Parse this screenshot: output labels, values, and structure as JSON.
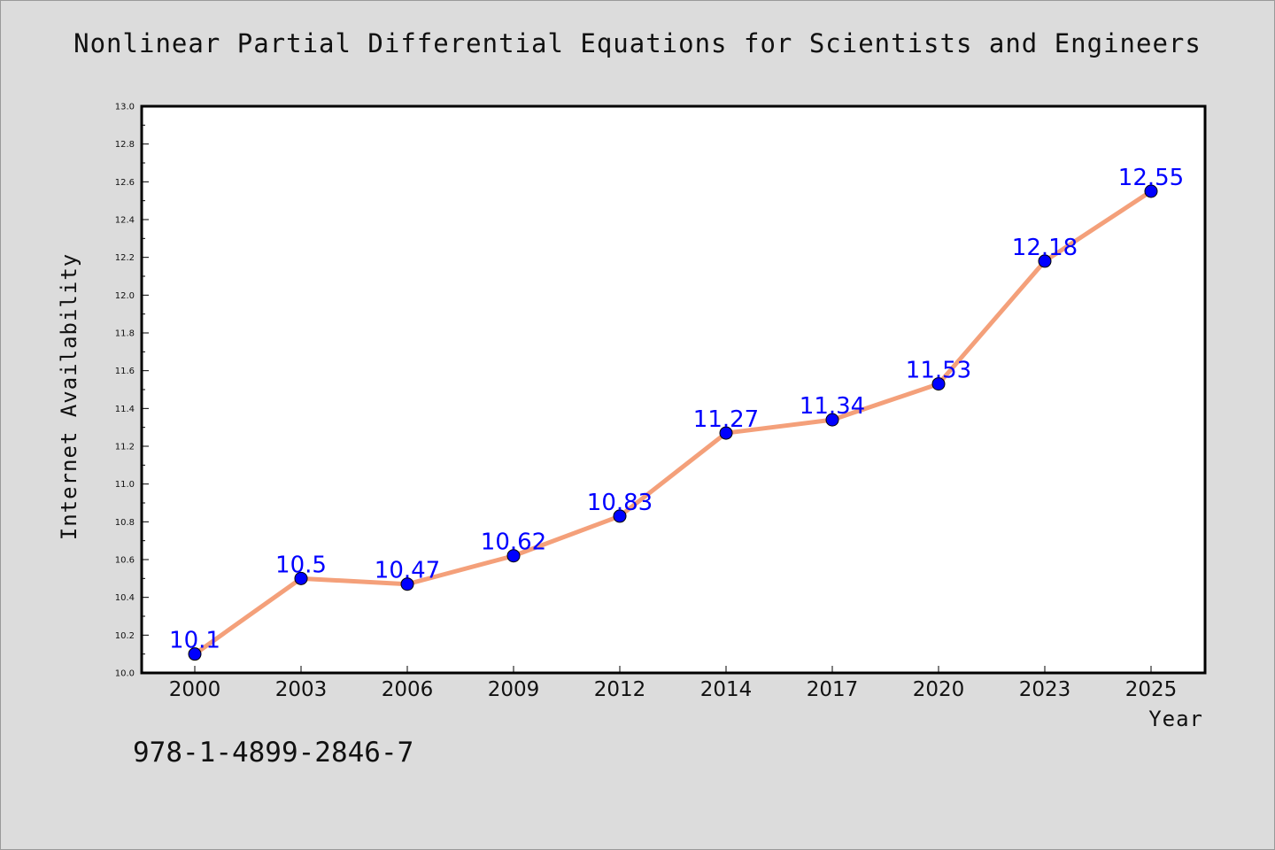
{
  "isbn": "978-1-4899-2846-7",
  "colors": {
    "line": "#f4a07a",
    "marker": "#0000ff",
    "label": "#0000ff",
    "background": "#dcdcdc",
    "plot_background": "#ffffff"
  },
  "chart_data": {
    "type": "line",
    "title": "Nonlinear Partial Differential Equations for Scientists and Engineers",
    "xlabel": "Year",
    "ylabel": "Internet Availability",
    "categories": [
      "2000",
      "2003",
      "2006",
      "2009",
      "2012",
      "2014",
      "2017",
      "2020",
      "2023",
      "2025"
    ],
    "series": [
      {
        "values": [
          10.1,
          10.5,
          10.47,
          10.62,
          10.83,
          11.27,
          11.34,
          11.53,
          12.18,
          12.55
        ],
        "labels": [
          "10.1",
          "10.5",
          "10.47",
          "10.62",
          "10.83",
          "11.27",
          "11.34",
          "11.53",
          "12.18",
          "12.55"
        ]
      }
    ],
    "ylim": [
      10.0,
      13.0
    ],
    "yticks": [
      "10.0",
      "10.2",
      "10.4",
      "10.6",
      "10.8",
      "11.0",
      "11.2",
      "11.4",
      "11.6",
      "11.8",
      "12.0",
      "12.2",
      "12.4",
      "12.6",
      "12.8",
      "13.0"
    ],
    "grid": false,
    "legend": "none"
  }
}
